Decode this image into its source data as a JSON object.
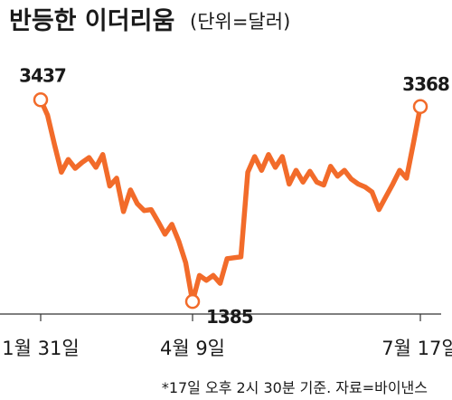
{
  "colors": {
    "line": "#f26b2a",
    "axis": "#333333",
    "text": "#1a1a1a",
    "marker_fill": "#ffffff"
  },
  "chart_data": {
    "type": "line",
    "title": "반등한 이더리움",
    "unit": "(단위=달러)",
    "grid": false,
    "legend": "none",
    "ylim": [
      1000,
      3900
    ],
    "x_ticks": [
      {
        "index": 0,
        "label": "1월 31일"
      },
      {
        "index": 22,
        "label": "4월 9일"
      },
      {
        "index": 55,
        "label": "7월 17일"
      }
    ],
    "series": [
      {
        "values": [
          3437,
          3280,
          2980,
          2700,
          2830,
          2740,
          2800,
          2850,
          2750,
          2880,
          2560,
          2640,
          2300,
          2520,
          2380,
          2310,
          2320,
          2200,
          2070,
          2170,
          2000,
          1780,
          1385,
          1650,
          1600,
          1650,
          1570,
          1820,
          1830,
          1840,
          2700,
          2860,
          2720,
          2880,
          2750,
          2860,
          2580,
          2720,
          2600,
          2710,
          2600,
          2570,
          2760,
          2660,
          2720,
          2630,
          2580,
          2550,
          2500,
          2320,
          2450,
          2580,
          2720,
          2640,
          3000,
          3368
        ]
      }
    ],
    "annotations": [
      {
        "index": 0,
        "value": 3437,
        "label": "3437"
      },
      {
        "index": 22,
        "value": 1385,
        "label": "1385"
      },
      {
        "index": 55,
        "value": 3368,
        "label": "3368"
      }
    ],
    "note": "*17일 오후 2시 30분 기준. 자료=바이낸스"
  }
}
